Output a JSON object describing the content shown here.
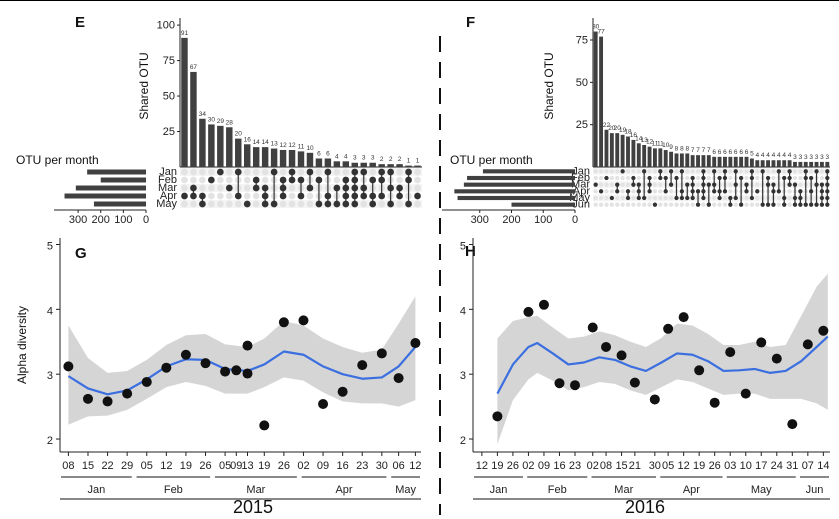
{
  "figure": {
    "colors": {
      "bar": "#404040",
      "dot_off": "#e3e3e3",
      "dot_on": "#333333",
      "smooth": "#3b6fe0",
      "ribbon": "#d5d5d5",
      "point": "#111111"
    }
  },
  "chart_data": [
    {
      "type": "bar",
      "panel": "E",
      "ylabel": "Shared OTU",
      "yticks": [
        25,
        50,
        75,
        100
      ],
      "ylim": [
        0,
        105
      ],
      "values": [
        91,
        67,
        34,
        30,
        29,
        28,
        20,
        16,
        14,
        14,
        13,
        12,
        12,
        11,
        10,
        6,
        6,
        4,
        4,
        3,
        3,
        3,
        2,
        2,
        2,
        1,
        1
      ],
      "value_labels": [
        "91",
        "67",
        "34",
        "30",
        "29",
        "28",
        "20",
        "16",
        "14",
        "14",
        "13",
        "12",
        "12",
        "11",
        "10",
        "6",
        "6",
        "4",
        "4",
        "3",
        "3",
        "3",
        "2",
        "2",
        "2",
        "1",
        "1"
      ],
      "sets": [
        "Jan",
        "Feb",
        "Mar",
        "Apr",
        "May"
      ],
      "set_sizes_label": "OTU per month",
      "set_sizes": [
        260,
        200,
        310,
        360,
        230
      ],
      "set_size_ticks": [
        300,
        200,
        100,
        0
      ],
      "membership": [
        [
          3
        ],
        [
          2,
          3
        ],
        [
          3,
          4
        ],
        [
          1
        ],
        [
          0
        ],
        [
          2
        ],
        [
          0,
          3
        ],
        [
          4
        ],
        [
          1,
          2
        ],
        [
          2,
          3,
          4
        ],
        [
          0,
          4
        ],
        [
          1,
          2,
          3
        ],
        [
          0,
          1
        ],
        [
          1,
          3
        ],
        [
          0,
          2
        ],
        [
          1,
          4
        ],
        [
          0,
          3,
          4
        ],
        [
          2,
          4
        ],
        [
          1,
          2,
          3,
          4
        ],
        [
          0,
          1,
          2,
          3,
          4
        ],
        [
          0,
          2,
          3
        ],
        [
          1,
          3,
          4
        ],
        [
          0,
          1,
          3
        ],
        [
          0,
          2,
          4
        ],
        [
          2,
          3
        ],
        [
          0,
          1,
          4
        ],
        [
          3
        ]
      ]
    },
    {
      "type": "bar",
      "panel": "F",
      "ylabel": "Shared OTU",
      "yticks": [
        25,
        50,
        75
      ],
      "ylim": [
        0,
        88
      ],
      "values": [
        80,
        77,
        22,
        20,
        20,
        19,
        18,
        16,
        14,
        13,
        12,
        11,
        11,
        10,
        9,
        8,
        8,
        8,
        7,
        7,
        7,
        7,
        6,
        6,
        6,
        6,
        6,
        6,
        6,
        5,
        4,
        4,
        4,
        4,
        4,
        4,
        4,
        3,
        3,
        3,
        3,
        3,
        3,
        3
      ],
      "value_labels": [
        "80",
        "77",
        "22",
        "20",
        "20",
        "19",
        "18",
        "16",
        "14",
        "13",
        "12",
        "11",
        "11",
        "10",
        "9",
        "8",
        "8",
        "8",
        "7",
        "7",
        "7",
        "7",
        "6",
        "6",
        "6",
        "6",
        "6",
        "6",
        "6",
        "5",
        "4",
        "4",
        "4",
        "4",
        "4",
        "4",
        "4",
        "3",
        "3",
        "3",
        "3",
        "3",
        "3",
        "3"
      ],
      "sets": [
        "Jan",
        "Feb",
        "Mar",
        "Apr",
        "May",
        "Jun"
      ],
      "set_sizes_label": "OTU per month",
      "set_sizes": [
        290,
        340,
        350,
        380,
        370,
        200
      ],
      "set_size_ticks": [
        300,
        200,
        100,
        0
      ],
      "membership": [
        [
          2
        ],
        [
          3
        ],
        [
          1
        ],
        [
          4
        ],
        [
          2,
          3
        ],
        [
          0
        ],
        [
          3,
          4
        ],
        [
          1,
          2
        ],
        [
          2,
          3,
          4
        ],
        [
          0,
          4
        ],
        [
          1,
          2,
          3
        ],
        [
          5
        ],
        [
          0,
          1
        ],
        [
          1,
          3
        ],
        [
          0,
          2
        ],
        [
          1,
          4
        ],
        [
          0,
          3,
          4
        ],
        [
          2,
          4
        ],
        [
          1,
          2,
          3,
          4
        ],
        [
          3,
          5
        ],
        [
          0,
          1,
          2,
          3,
          4
        ],
        [
          2,
          5
        ],
        [
          0,
          2,
          3
        ],
        [
          1,
          3,
          4
        ],
        [
          0,
          1,
          3
        ],
        [
          4,
          5
        ],
        [
          0,
          2,
          4
        ],
        [
          1,
          5
        ],
        [
          2,
          3
        ],
        [
          0,
          1,
          4
        ],
        [
          3
        ],
        [
          0,
          5
        ],
        [
          1,
          2,
          5
        ],
        [
          2,
          3,
          5
        ],
        [
          0,
          3
        ],
        [
          1,
          4,
          5
        ],
        [
          0,
          1,
          2
        ],
        [
          2,
          4,
          5
        ],
        [
          3,
          4,
          5
        ],
        [
          0,
          1,
          5
        ],
        [
          1,
          3,
          5
        ],
        [
          0,
          2,
          5
        ],
        [
          2,
          3,
          4,
          5
        ],
        [
          0,
          1,
          2,
          3,
          4,
          5
        ]
      ]
    },
    {
      "type": "scatter",
      "panel": "G",
      "ylabel": "Alpha diversity",
      "ylim": [
        1.8,
        5.1
      ],
      "yticks": [
        2,
        3,
        4,
        5
      ],
      "xlim": [
        "2015-01-05",
        "2015-05-14"
      ],
      "x_ticks": [
        "2015-01-08",
        "2015-01-15",
        "2015-01-22",
        "2015-01-29",
        "2015-02-05",
        "2015-02-12",
        "2015-02-19",
        "2015-02-26",
        "2015-03-05",
        "2015-03-09",
        "2015-03-13",
        "2015-03-19",
        "2015-03-26",
        "2015-04-02",
        "2015-04-09",
        "2015-04-16",
        "2015-04-23",
        "2015-04-30",
        "2015-05-06",
        "2015-05-12"
      ],
      "x_tick_labels": [
        "08",
        "15",
        "22",
        "29",
        "05",
        "12",
        "19",
        "26",
        "05",
        "09",
        "13",
        "19",
        "26",
        "02",
        "09",
        "16",
        "23",
        "30",
        "06",
        "12"
      ],
      "months": [
        {
          "label": "Jan",
          "start": "2015-01-05",
          "end": "2015-01-31"
        },
        {
          "label": "Feb",
          "start": "2015-02-01",
          "end": "2015-02-28"
        },
        {
          "label": "Mar",
          "start": "2015-03-01",
          "end": "2015-03-31"
        },
        {
          "label": "Apr",
          "start": "2015-04-01",
          "end": "2015-05-02"
        },
        {
          "label": "May",
          "start": "2015-05-03",
          "end": "2015-05-14"
        }
      ],
      "year_label": "2015",
      "points": [
        {
          "x": "2015-01-08",
          "y": 3.12
        },
        {
          "x": "2015-01-15",
          "y": 2.62
        },
        {
          "x": "2015-01-22",
          "y": 2.58
        },
        {
          "x": "2015-01-29",
          "y": 2.7
        },
        {
          "x": "2015-02-05",
          "y": 2.88
        },
        {
          "x": "2015-02-12",
          "y": 3.1
        },
        {
          "x": "2015-02-19",
          "y": 3.3
        },
        {
          "x": "2015-02-26",
          "y": 3.17
        },
        {
          "x": "2015-03-05",
          "y": 3.04
        },
        {
          "x": "2015-03-09",
          "y": 3.06
        },
        {
          "x": "2015-03-13",
          "y": 3.44
        },
        {
          "x": "2015-03-13",
          "y": 3.01
        },
        {
          "x": "2015-03-19",
          "y": 2.21
        },
        {
          "x": "2015-03-26",
          "y": 3.8
        },
        {
          "x": "2015-04-02",
          "y": 3.83
        },
        {
          "x": "2015-04-09",
          "y": 2.54
        },
        {
          "x": "2015-04-16",
          "y": 2.73
        },
        {
          "x": "2015-04-23",
          "y": 3.14
        },
        {
          "x": "2015-04-30",
          "y": 3.32
        },
        {
          "x": "2015-05-06",
          "y": 2.94
        },
        {
          "x": "2015-05-12",
          "y": 3.48
        }
      ],
      "smooth": [
        {
          "x": "2015-01-08",
          "y": 2.97,
          "lo": 2.22,
          "hi": 3.75
        },
        {
          "x": "2015-01-15",
          "y": 2.78,
          "lo": 2.35,
          "hi": 3.25
        },
        {
          "x": "2015-01-22",
          "y": 2.69,
          "lo": 2.36,
          "hi": 3.02
        },
        {
          "x": "2015-01-29",
          "y": 2.75,
          "lo": 2.45,
          "hi": 3.05
        },
        {
          "x": "2015-02-05",
          "y": 2.92,
          "lo": 2.62,
          "hi": 3.22
        },
        {
          "x": "2015-02-12",
          "y": 3.12,
          "lo": 2.8,
          "hi": 3.45
        },
        {
          "x": "2015-02-19",
          "y": 3.23,
          "lo": 2.88,
          "hi": 3.6
        },
        {
          "x": "2015-02-26",
          "y": 3.22,
          "lo": 2.82,
          "hi": 3.62
        },
        {
          "x": "2015-03-05",
          "y": 3.08,
          "lo": 2.7,
          "hi": 3.46
        },
        {
          "x": "2015-03-13",
          "y": 3.05,
          "lo": 2.7,
          "hi": 3.42
        },
        {
          "x": "2015-03-19",
          "y": 3.15,
          "lo": 2.8,
          "hi": 3.55
        },
        {
          "x": "2015-03-26",
          "y": 3.35,
          "lo": 2.95,
          "hi": 3.82
        },
        {
          "x": "2015-04-02",
          "y": 3.3,
          "lo": 2.9,
          "hi": 3.75
        },
        {
          "x": "2015-04-09",
          "y": 3.12,
          "lo": 2.72,
          "hi": 3.55
        },
        {
          "x": "2015-04-16",
          "y": 3.0,
          "lo": 2.58,
          "hi": 3.42
        },
        {
          "x": "2015-04-23",
          "y": 2.93,
          "lo": 2.55,
          "hi": 3.33
        },
        {
          "x": "2015-04-30",
          "y": 2.95,
          "lo": 2.55,
          "hi": 3.38
        },
        {
          "x": "2015-05-06",
          "y": 3.12,
          "lo": 2.5,
          "hi": 3.78
        },
        {
          "x": "2015-05-12",
          "y": 3.42,
          "lo": 2.6,
          "hi": 4.2
        }
      ]
    },
    {
      "type": "scatter",
      "panel": "H",
      "ylabel": "",
      "ylim": [
        1.8,
        5.1
      ],
      "yticks": [
        2,
        3,
        4,
        5
      ],
      "xlim": [
        "2016-01-08",
        "2016-06-17"
      ],
      "x_ticks": [
        "2016-01-12",
        "2016-01-19",
        "2016-01-26",
        "2016-02-02",
        "2016-02-09",
        "2016-02-16",
        "2016-02-23",
        "2016-03-02",
        "2016-03-08",
        "2016-03-15",
        "2016-03-21",
        "2016-03-30",
        "2016-04-05",
        "2016-04-12",
        "2016-04-19",
        "2016-04-26",
        "2016-05-03",
        "2016-05-10",
        "2016-05-17",
        "2016-05-24",
        "2016-05-31",
        "2016-06-07",
        "2016-06-14"
      ],
      "x_tick_labels": [
        "12",
        "19",
        "26",
        "02",
        "09",
        "16",
        "23",
        "02",
        "08",
        "15",
        "21",
        "30",
        "05",
        "12",
        "19",
        "26",
        "03",
        "10",
        "17",
        "24",
        "31",
        "07",
        "14"
      ],
      "months": [
        {
          "label": "Jan",
          "start": "2016-01-08",
          "end": "2016-01-31"
        },
        {
          "label": "Feb",
          "start": "2016-02-01",
          "end": "2016-02-29"
        },
        {
          "label": "Mar",
          "start": "2016-03-01",
          "end": "2016-03-31"
        },
        {
          "label": "Apr",
          "start": "2016-04-01",
          "end": "2016-04-30"
        },
        {
          "label": "May",
          "start": "2016-05-01",
          "end": "2016-06-02"
        },
        {
          "label": "Jun",
          "start": "2016-06-03",
          "end": "2016-06-17"
        }
      ],
      "year_label": "2016",
      "points": [
        {
          "x": "2016-01-19",
          "y": 2.35
        },
        {
          "x": "2016-02-02",
          "y": 3.96
        },
        {
          "x": "2016-02-09",
          "y": 4.07
        },
        {
          "x": "2016-02-16",
          "y": 2.86
        },
        {
          "x": "2016-02-23",
          "y": 2.83
        },
        {
          "x": "2016-03-02",
          "y": 3.72
        },
        {
          "x": "2016-03-08",
          "y": 3.42
        },
        {
          "x": "2016-03-15",
          "y": 3.29
        },
        {
          "x": "2016-03-21",
          "y": 2.87
        },
        {
          "x": "2016-03-30",
          "y": 2.61
        },
        {
          "x": "2016-04-05",
          "y": 3.7
        },
        {
          "x": "2016-04-12",
          "y": 3.88
        },
        {
          "x": "2016-04-19",
          "y": 3.06
        },
        {
          "x": "2016-04-26",
          "y": 2.56
        },
        {
          "x": "2016-05-03",
          "y": 3.34
        },
        {
          "x": "2016-05-10",
          "y": 2.7
        },
        {
          "x": "2016-05-17",
          "y": 3.49
        },
        {
          "x": "2016-05-24",
          "y": 3.24
        },
        {
          "x": "2016-05-31",
          "y": 2.23
        },
        {
          "x": "2016-06-07",
          "y": 3.46
        },
        {
          "x": "2016-06-14",
          "y": 3.67
        }
      ],
      "smooth": [
        {
          "x": "2016-01-19",
          "y": 2.7,
          "lo": 1.92,
          "hi": 3.55
        },
        {
          "x": "2016-01-26",
          "y": 3.15,
          "lo": 2.6,
          "hi": 3.82
        },
        {
          "x": "2016-02-02",
          "y": 3.42,
          "lo": 2.92,
          "hi": 3.88
        },
        {
          "x": "2016-02-06",
          "y": 3.48,
          "lo": 3.02,
          "hi": 3.9
        },
        {
          "x": "2016-02-13",
          "y": 3.32,
          "lo": 2.9,
          "hi": 3.72
        },
        {
          "x": "2016-02-20",
          "y": 3.15,
          "lo": 2.75,
          "hi": 3.55
        },
        {
          "x": "2016-02-27",
          "y": 3.18,
          "lo": 2.8,
          "hi": 3.58
        },
        {
          "x": "2016-03-05",
          "y": 3.26,
          "lo": 2.88,
          "hi": 3.66
        },
        {
          "x": "2016-03-12",
          "y": 3.22,
          "lo": 2.85,
          "hi": 3.6
        },
        {
          "x": "2016-03-19",
          "y": 3.12,
          "lo": 2.75,
          "hi": 3.5
        },
        {
          "x": "2016-03-26",
          "y": 3.05,
          "lo": 2.68,
          "hi": 3.42
        },
        {
          "x": "2016-04-02",
          "y": 3.18,
          "lo": 2.8,
          "hi": 3.56
        },
        {
          "x": "2016-04-09",
          "y": 3.32,
          "lo": 2.92,
          "hi": 3.78
        },
        {
          "x": "2016-04-16",
          "y": 3.3,
          "lo": 2.88,
          "hi": 3.75
        },
        {
          "x": "2016-04-23",
          "y": 3.2,
          "lo": 2.78,
          "hi": 3.62
        },
        {
          "x": "2016-04-30",
          "y": 3.05,
          "lo": 2.68,
          "hi": 3.45
        },
        {
          "x": "2016-05-07",
          "y": 3.06,
          "lo": 2.7,
          "hi": 3.45
        },
        {
          "x": "2016-05-14",
          "y": 3.08,
          "lo": 2.7,
          "hi": 3.5
        },
        {
          "x": "2016-05-21",
          "y": 3.02,
          "lo": 2.62,
          "hi": 3.42
        },
        {
          "x": "2016-05-28",
          "y": 3.05,
          "lo": 2.62,
          "hi": 3.45
        },
        {
          "x": "2016-06-04",
          "y": 3.2,
          "lo": 2.62,
          "hi": 3.9
        },
        {
          "x": "2016-06-11",
          "y": 3.42,
          "lo": 2.55,
          "hi": 4.35
        },
        {
          "x": "2016-06-16",
          "y": 3.58,
          "lo": 2.45,
          "hi": 4.55
        }
      ]
    }
  ]
}
